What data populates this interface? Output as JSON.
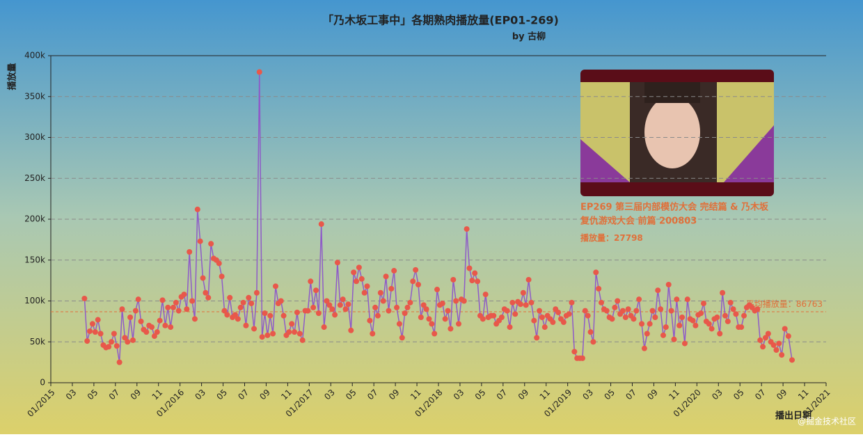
{
  "chart_data": {
    "type": "line",
    "title": "「乃木坂工事中」各期熟肉播放量(EP01-269)",
    "subtitle": "by 古柳",
    "y_label": "播放量",
    "x_label": "播出日期",
    "watermark": "@掘金技术社区",
    "line_color": "#8e5bc8",
    "marker_color": "#e8584a",
    "average": 86763,
    "average_label": "平均播放量：",
    "average_color": "#e0703a",
    "tooltip": {
      "title_line1": "EP269 第三届内部模仿大会 完结篇 & 乃木坂",
      "title_line2": "复仇游戏大会 前篇 200803",
      "value_label": "播放量：",
      "value": 27798
    },
    "xlim": [
      "2015-01",
      "2021-01"
    ],
    "ylim": [
      0,
      400000
    ],
    "yticks": [
      0,
      {
        "value": 50000,
        "label": "50k"
      },
      {
        "value": 100000,
        "label": "100k"
      },
      {
        "value": 150000,
        "label": "150k"
      },
      {
        "value": 200000,
        "label": "200k"
      },
      {
        "value": 250000,
        "label": "250k"
      },
      {
        "value": 300000,
        "label": "300k"
      },
      {
        "value": 350000,
        "label": "350k"
      },
      {
        "value": 400000,
        "label": "400k"
      }
    ],
    "grid": true,
    "xticks": [
      {
        "value": "2015-01",
        "label": "01/2015"
      },
      {
        "value": "2015-03",
        "label": "03"
      },
      {
        "value": "2015-05",
        "label": "05"
      },
      {
        "value": "2015-07",
        "label": "07"
      },
      {
        "value": "2015-09",
        "label": "09"
      },
      {
        "value": "2015-11",
        "label": "11"
      },
      {
        "value": "2016-01",
        "label": "01/2016"
      },
      {
        "value": "2016-03",
        "label": "03"
      },
      {
        "value": "2016-05",
        "label": "05"
      },
      {
        "value": "2016-07",
        "label": "07"
      },
      {
        "value": "2016-09",
        "label": "09"
      },
      {
        "value": "2016-11",
        "label": "11"
      },
      {
        "value": "2017-01",
        "label": "01/2017"
      },
      {
        "value": "2017-03",
        "label": "03"
      },
      {
        "value": "2017-05",
        "label": "05"
      },
      {
        "value": "2017-07",
        "label": "07"
      },
      {
        "value": "2017-09",
        "label": "09"
      },
      {
        "value": "2017-11",
        "label": "11"
      },
      {
        "value": "2018-01",
        "label": "01/2018"
      },
      {
        "value": "2018-03",
        "label": "03"
      },
      {
        "value": "2018-05",
        "label": "05"
      },
      {
        "value": "2018-07",
        "label": "07"
      },
      {
        "value": "2018-09",
        "label": "09"
      },
      {
        "value": "2018-11",
        "label": "11"
      },
      {
        "value": "2019-01",
        "label": "01/2019"
      },
      {
        "value": "2019-03",
        "label": "03"
      },
      {
        "value": "2019-05",
        "label": "05"
      },
      {
        "value": "2019-07",
        "label": "07"
      },
      {
        "value": "2019-09",
        "label": "09"
      },
      {
        "value": "2019-11",
        "label": "11"
      },
      {
        "value": "2020-01",
        "label": "01/2020"
      },
      {
        "value": "2020-03",
        "label": "03"
      },
      {
        "value": "2020-05",
        "label": "05"
      },
      {
        "value": "2020-07",
        "label": "07"
      },
      {
        "value": "2020-09",
        "label": "09"
      },
      {
        "value": "2020-11",
        "label": "11"
      },
      {
        "value": "2021-01",
        "label": "01/2021"
      }
    ],
    "x": [
      "2015-04",
      "2015-04",
      "2015-04",
      "2015-04",
      "2015-05",
      "2015-05",
      "2015-05",
      "2015-05",
      "2015-06",
      "2015-06",
      "2015-06",
      "2015-06",
      "2015-07",
      "2015-07",
      "2015-07",
      "2015-07",
      "2015-08",
      "2015-08",
      "2015-08",
      "2015-08",
      "2015-09",
      "2015-09",
      "2015-09",
      "2015-09",
      "2015-10",
      "2015-10",
      "2015-10",
      "2015-10",
      "2015-11",
      "2015-11",
      "2015-11",
      "2015-11",
      "2015-12",
      "2015-12",
      "2015-12",
      "2015-12",
      "2016-01",
      "2016-01",
      "2016-01",
      "2016-01",
      "2016-02",
      "2016-02",
      "2016-02",
      "2016-02",
      "2016-03",
      "2016-03",
      "2016-03",
      "2016-03",
      "2016-04",
      "2016-04",
      "2016-04",
      "2016-04",
      "2016-05",
      "2016-05",
      "2016-05",
      "2016-05",
      "2016-06",
      "2016-06",
      "2016-06",
      "2016-06",
      "2016-07",
      "2016-07",
      "2016-07",
      "2016-07",
      "2016-08",
      "2016-08",
      "2016-08",
      "2016-08",
      "2016-09",
      "2016-09",
      "2016-09",
      "2016-09",
      "2016-10",
      "2016-10",
      "2016-10",
      "2016-10",
      "2016-11",
      "2016-11",
      "2016-11",
      "2016-11",
      "2016-12",
      "2016-12",
      "2016-12",
      "2016-12",
      "2017-01",
      "2017-01",
      "2017-01",
      "2017-01",
      "2017-02",
      "2017-02",
      "2017-02",
      "2017-02",
      "2017-03",
      "2017-03",
      "2017-03",
      "2017-03",
      "2017-04",
      "2017-04",
      "2017-04",
      "2017-04",
      "2017-05",
      "2017-05",
      "2017-05",
      "2017-05",
      "2017-06",
      "2017-06",
      "2017-06",
      "2017-06",
      "2017-07",
      "2017-07",
      "2017-07",
      "2017-07",
      "2017-08",
      "2017-08",
      "2017-08",
      "2017-08",
      "2017-09",
      "2017-09",
      "2017-09",
      "2017-09",
      "2017-10",
      "2017-10",
      "2017-10",
      "2017-10",
      "2017-11",
      "2017-11",
      "2017-11",
      "2017-11",
      "2017-12",
      "2017-12",
      "2017-12",
      "2017-12",
      "2018-01",
      "2018-01",
      "2018-01",
      "2018-01",
      "2018-02",
      "2018-02",
      "2018-02",
      "2018-02",
      "2018-03",
      "2018-03",
      "2018-03",
      "2018-03",
      "2018-04",
      "2018-04",
      "2018-04",
      "2018-04",
      "2018-05",
      "2018-05",
      "2018-05",
      "2018-05",
      "2018-06",
      "2018-06",
      "2018-06",
      "2018-06",
      "2018-07",
      "2018-07",
      "2018-07",
      "2018-07",
      "2018-08",
      "2018-08",
      "2018-08",
      "2018-08",
      "2018-09",
      "2018-09",
      "2018-09",
      "2018-09",
      "2018-10",
      "2018-10",
      "2018-10",
      "2018-10",
      "2018-11",
      "2018-11",
      "2018-11",
      "2018-11",
      "2018-12",
      "2018-12",
      "2018-12",
      "2018-12",
      "2019-01",
      "2019-01",
      "2019-01",
      "2019-01",
      "2019-02",
      "2019-02",
      "2019-02",
      "2019-02",
      "2019-03",
      "2019-03",
      "2019-03",
      "2019-03",
      "2019-04",
      "2019-04",
      "2019-04",
      "2019-04",
      "2019-05",
      "2019-05",
      "2019-05",
      "2019-05",
      "2019-06",
      "2019-06",
      "2019-06",
      "2019-06",
      "2019-07",
      "2019-07",
      "2019-07",
      "2019-07",
      "2019-08",
      "2019-08",
      "2019-08",
      "2019-08",
      "2019-09",
      "2019-09",
      "2019-09",
      "2019-09",
      "2019-10",
      "2019-10",
      "2019-10",
      "2019-10",
      "2019-11",
      "2019-11",
      "2019-11",
      "2019-11",
      "2019-12",
      "2019-12",
      "2019-12",
      "2019-12",
      "2020-01",
      "2020-01",
      "2020-01",
      "2020-01",
      "2020-02",
      "2020-02",
      "2020-02",
      "2020-02",
      "2020-03",
      "2020-03",
      "2020-03",
      "2020-03",
      "2020-04",
      "2020-04",
      "2020-04",
      "2020-04",
      "2020-05",
      "2020-05",
      "2020-05",
      "2020-05",
      "2020-06",
      "2020-06",
      "2020-06",
      "2020-06",
      "2020-07",
      "2020-07",
      "2020-07",
      "2020-07",
      "2020-08",
      "2020-08",
      "2020-08",
      "2020-08",
      "2020-09",
      "2020-09",
      "2020-09"
    ],
    "values": [
      103000,
      51000,
      63000,
      72000,
      62000,
      77000,
      60000,
      46000,
      43000,
      44000,
      50000,
      60000,
      45000,
      25000,
      90000,
      55000,
      50000,
      80000,
      52000,
      88000,
      102000,
      75000,
      65000,
      62000,
      70000,
      68000,
      57000,
      62000,
      76000,
      101000,
      70000,
      92000,
      68000,
      92000,
      98000,
      88000,
      105000,
      108000,
      90000,
      160000,
      100000,
      78000,
      212000,
      173000,
      128000,
      110000,
      104000,
      170000,
      152000,
      150000,
      146000,
      130000,
      88000,
      83000,
      104000,
      80000,
      83000,
      78000,
      92000,
      98000,
      70000,
      104000,
      97000,
      66000,
      110000,
      380000,
      56000,
      85000,
      58000,
      82000,
      60000,
      118000,
      97000,
      100000,
      82000,
      58000,
      62000,
      72000,
      62000,
      86000,
      60000,
      52000,
      88000,
      88000,
      124000,
      92000,
      113000,
      85000,
      194000,
      68000,
      100000,
      95000,
      90000,
      83000,
      147000,
      95000,
      102000,
      90000,
      96000,
      64000,
      135000,
      124000,
      141000,
      127000,
      110000,
      118000,
      76000,
      60000,
      92000,
      82000,
      110000,
      100000,
      130000,
      88000,
      115000,
      137000,
      92000,
      72000,
      55000,
      85000,
      92000,
      98000,
      124000,
      138000,
      120000,
      80000,
      95000,
      90000,
      78000,
      72000,
      60000,
      114000,
      95000,
      97000,
      78000,
      88000,
      66000,
      126000,
      100000,
      72000,
      102000,
      100000,
      188000,
      140000,
      125000,
      134000,
      124000,
      82000,
      78000,
      108000,
      80000,
      82000,
      82000,
      72000,
      76000,
      80000,
      90000,
      88000,
      68000,
      98000,
      84000,
      99000,
      96000,
      110000,
      95000,
      126000,
      98000,
      76000,
      55000,
      88000,
      80000,
      68000,
      82000,
      78000,
      74000,
      90000,
      86000,
      78000,
      74000,
      82000,
      84000,
      98000,
      38000,
      30000,
      30000,
      30000,
      88000,
      82000,
      62000,
      50000,
      135000,
      115000,
      98000,
      90000,
      88000,
      80000,
      78000,
      92000,
      100000,
      84000,
      88000,
      80000,
      90000,
      82000,
      78000,
      88000,
      102000,
      72000,
      42000,
      60000,
      72000,
      88000,
      80000,
      113000,
      90000,
      58000,
      68000,
      120000,
      88000,
      53000,
      102000,
      70000,
      80000,
      48000,
      102000,
      78000,
      76000,
      70000,
      83000,
      85000,
      97000,
      75000,
      72000,
      66000,
      78000,
      80000,
      60000,
      110000,
      82000,
      75000,
      98000,
      90000,
      84000,
      68000,
      68000,
      82000,
      92000,
      95000,
      92000,
      88000,
      90000,
      52000,
      44000,
      55000,
      60000,
      50000,
      46000,
      40000,
      48000,
      34000,
      66000,
      57000,
      27798
    ]
  }
}
